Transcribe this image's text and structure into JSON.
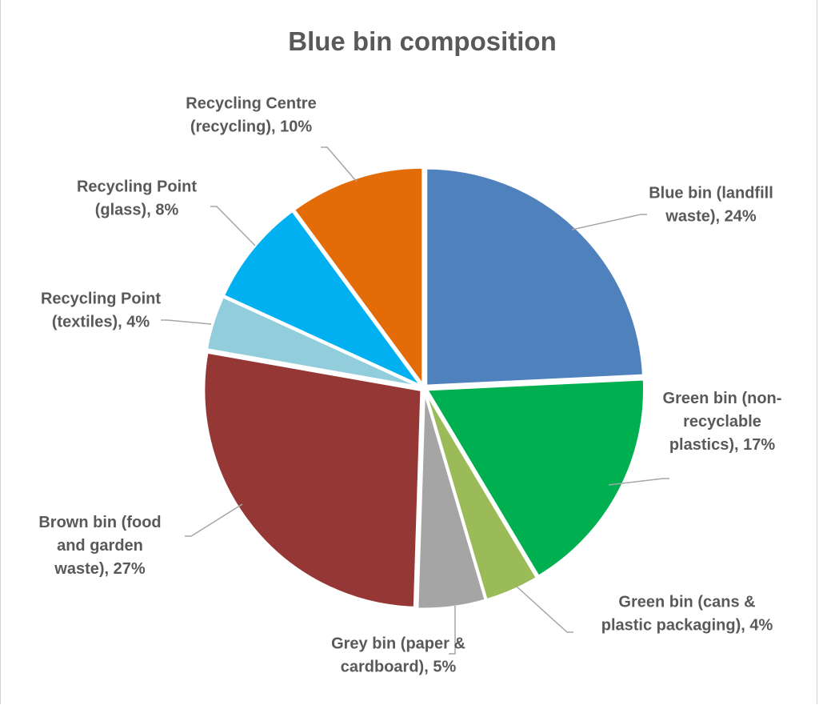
{
  "chart_data": {
    "type": "pie",
    "title": "Blue bin composition",
    "legend": "none",
    "slices": [
      {
        "label": [
          "Blue bin (landfill",
          "waste), 24%"
        ],
        "name": "Blue bin (landfill waste)",
        "value": 24,
        "color": "#4F81BD"
      },
      {
        "label": [
          "Green bin (non-",
          "recyclable",
          "plastics), 17%"
        ],
        "name": "Green bin (non-recyclable plastics)",
        "value": 17,
        "color": "#00B050"
      },
      {
        "label": [
          "Green bin (cans &",
          "plastic packaging), 4%"
        ],
        "name": "Green bin (cans & plastic packaging)",
        "value": 4,
        "color": "#9BBB59"
      },
      {
        "label": [
          "Grey bin (paper &",
          "cardboard), 5%"
        ],
        "name": "Grey bin (paper & cardboard)",
        "value": 5,
        "color": "#A5A5A5"
      },
      {
        "label": [
          "Brown bin (food",
          "and garden",
          "waste), 27%"
        ],
        "name": "Brown bin (food and garden waste)",
        "value": 27,
        "color": "#953735"
      },
      {
        "label": [
          "Recycling Point",
          "(textiles), 4%"
        ],
        "name": "Recycling Point (textiles)",
        "value": 4,
        "color": "#92CDDC"
      },
      {
        "label": [
          "Recycling Point",
          "(glass), 8%"
        ],
        "name": "Recycling Point (glass)",
        "value": 8,
        "color": "#00B0F0"
      },
      {
        "label": [
          "Recycling Centre",
          "(recycling), 10%"
        ],
        "name": "Recycling Centre (recycling)",
        "value": 10,
        "color": "#E36C09"
      }
    ]
  }
}
